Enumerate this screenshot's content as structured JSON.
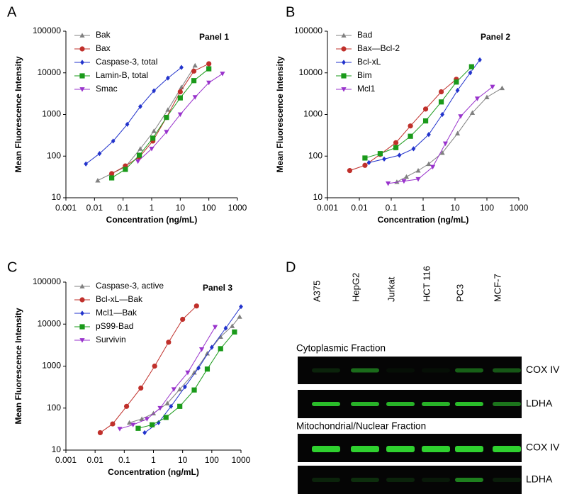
{
  "chart_data": [
    {
      "type": "line",
      "label": "A",
      "title": "Panel 1",
      "xlabel": "Concentration (ng/mL)",
      "ylabel": "Mean Fluorescence Intensity",
      "xscale": "log",
      "yscale": "log",
      "xlim": [
        0.001,
        1000
      ],
      "ylim": [
        10,
        100000
      ],
      "xticks": [
        0.001,
        0.01,
        0.1,
        1,
        10,
        100,
        1000
      ],
      "yticks": [
        10,
        100,
        1000,
        10000,
        100000
      ],
      "legend": "upper left",
      "series": [
        {
          "name": "Bak",
          "color": "#808080",
          "marker": "triangle",
          "x": [
            0.013,
            0.12,
            0.4,
            1.2,
            3.7,
            11,
            33
          ],
          "values": [
            26,
            55,
            150,
            400,
            1300,
            4500,
            15000
          ]
        },
        {
          "name": "Bax",
          "color": "#c0302b",
          "marker": "circle",
          "x": [
            0.04,
            0.12,
            0.37,
            1.1,
            3.3,
            10,
            30,
            100
          ],
          "values": [
            38,
            58,
            95,
            230,
            850,
            3500,
            11000,
            16500
          ]
        },
        {
          "name": "Caspase-3, total",
          "color": "#2233cc",
          "marker": "diamond",
          "x": [
            0.005,
            0.015,
            0.045,
            0.14,
            0.4,
            1.2,
            3.7,
            11
          ],
          "values": [
            65,
            115,
            230,
            580,
            1550,
            3700,
            7500,
            13500
          ]
        },
        {
          "name": "Lamin-B, total",
          "color": "#1a9a1a",
          "marker": "square",
          "x": [
            0.04,
            0.12,
            0.37,
            1.1,
            3.3,
            10,
            30,
            100
          ],
          "values": [
            30,
            48,
            105,
            270,
            850,
            2500,
            6500,
            12500
          ]
        },
        {
          "name": "Smac",
          "color": "#9933cc",
          "marker": "triangle-down",
          "x": [
            0.33,
            1,
            3.3,
            10,
            33,
            100,
            300
          ],
          "values": [
            75,
            150,
            380,
            1000,
            2600,
            5800,
            9500
          ]
        }
      ]
    },
    {
      "type": "line",
      "label": "B",
      "title": "Panel 2",
      "xlabel": "Concentration (ng/mL)",
      "ylabel": "Mean Fluorescence Intensity",
      "xscale": "log",
      "yscale": "log",
      "xlim": [
        0.001,
        1000
      ],
      "ylim": [
        10,
        100000
      ],
      "xticks": [
        0.001,
        0.01,
        0.1,
        1,
        10,
        100,
        1000
      ],
      "yticks": [
        10,
        100,
        1000,
        10000,
        100000
      ],
      "legend": "upper left",
      "series": [
        {
          "name": "Bad",
          "color": "#808080",
          "marker": "triangle",
          "x": [
            0.15,
            0.3,
            0.7,
            1.5,
            4,
            12,
            35,
            100,
            300
          ],
          "values": [
            24,
            32,
            45,
            65,
            120,
            350,
            1100,
            2600,
            4300
          ]
        },
        {
          "name": "Bax—Bcl-2",
          "color": "#c0302b",
          "marker": "circle",
          "x": [
            0.005,
            0.015,
            0.045,
            0.14,
            0.4,
            1.2,
            3.7,
            11
          ],
          "values": [
            45,
            60,
            110,
            210,
            530,
            1350,
            3500,
            7000
          ]
        },
        {
          "name": "Bcl-xL",
          "color": "#2233cc",
          "marker": "diamond",
          "x": [
            0.02,
            0.06,
            0.18,
            0.5,
            1.5,
            4,
            12,
            30,
            60
          ],
          "values": [
            70,
            85,
            105,
            150,
            330,
            1000,
            3800,
            10000,
            20500
          ]
        },
        {
          "name": "Bim",
          "color": "#1a9a1a",
          "marker": "square",
          "x": [
            0.015,
            0.045,
            0.14,
            0.4,
            1.2,
            3.7,
            11,
            33
          ],
          "values": [
            90,
            115,
            160,
            300,
            700,
            2000,
            6000,
            14000
          ]
        },
        {
          "name": "Mcl1",
          "color": "#9933cc",
          "marker": "triangle-down",
          "x": [
            0.08,
            0.25,
            0.7,
            2,
            5,
            15,
            50,
            150
          ],
          "values": [
            22,
            25,
            28,
            55,
            200,
            900,
            2400,
            4600
          ]
        }
      ]
    },
    {
      "type": "line",
      "label": "C",
      "title": "Panel 3",
      "xlabel": "Concentration (ng/mL)",
      "ylabel": "Mean Fluorescence Intensity",
      "xscale": "log",
      "yscale": "log",
      "xlim": [
        0.001,
        1000
      ],
      "ylim": [
        10,
        100000
      ],
      "xticks": [
        0.001,
        0.01,
        0.1,
        1,
        10,
        100,
        1000
      ],
      "yticks": [
        10,
        100,
        1000,
        10000,
        100000
      ],
      "legend": "upper left",
      "series": [
        {
          "name": "Caspase-3, active",
          "color": "#808080",
          "marker": "triangle",
          "x": [
            0.15,
            0.4,
            1,
            3,
            8,
            25,
            70,
            200,
            500,
            900
          ],
          "values": [
            45,
            55,
            75,
            130,
            280,
            700,
            2000,
            5000,
            9000,
            15000
          ]
        },
        {
          "name": "Bcl-xL—Bak",
          "color": "#c0302b",
          "marker": "circle",
          "x": [
            0.015,
            0.04,
            0.12,
            0.37,
            1.1,
            3.3,
            10,
            30
          ],
          "values": [
            26,
            42,
            110,
            300,
            1000,
            3700,
            13000,
            27000
          ]
        },
        {
          "name": "Mcl1—Bak",
          "color": "#2233cc",
          "marker": "diamond",
          "x": [
            0.5,
            1.5,
            4,
            12,
            35,
            100,
            300,
            1000
          ],
          "values": [
            26,
            45,
            110,
            320,
            900,
            2800,
            8000,
            26000
          ]
        },
        {
          "name": "pS99-Bad",
          "color": "#1a9a1a",
          "marker": "square",
          "x": [
            0.3,
            0.9,
            2.7,
            8,
            25,
            70,
            200,
            600
          ],
          "values": [
            33,
            40,
            60,
            110,
            270,
            850,
            2600,
            6500
          ]
        },
        {
          "name": "Survivin",
          "color": "#9933cc",
          "marker": "triangle-down",
          "x": [
            0.07,
            0.2,
            0.6,
            1.7,
            5,
            15,
            45,
            130
          ],
          "values": [
            32,
            40,
            55,
            100,
            280,
            700,
            2500,
            8500
          ]
        }
      ]
    }
  ],
  "blot": {
    "label": "D",
    "lanes": [
      "A375",
      "HepG2",
      "Jurkat",
      "HCT 116",
      "PC3",
      "MCF-7"
    ],
    "fractions": [
      {
        "title": "Cytoplasmic Fraction",
        "rows": [
          "COX IV",
          "LDHA"
        ]
      },
      {
        "title": "Mitochondrial/Nuclear Fraction",
        "rows": [
          "COX IV",
          "LDHA"
        ]
      }
    ]
  }
}
